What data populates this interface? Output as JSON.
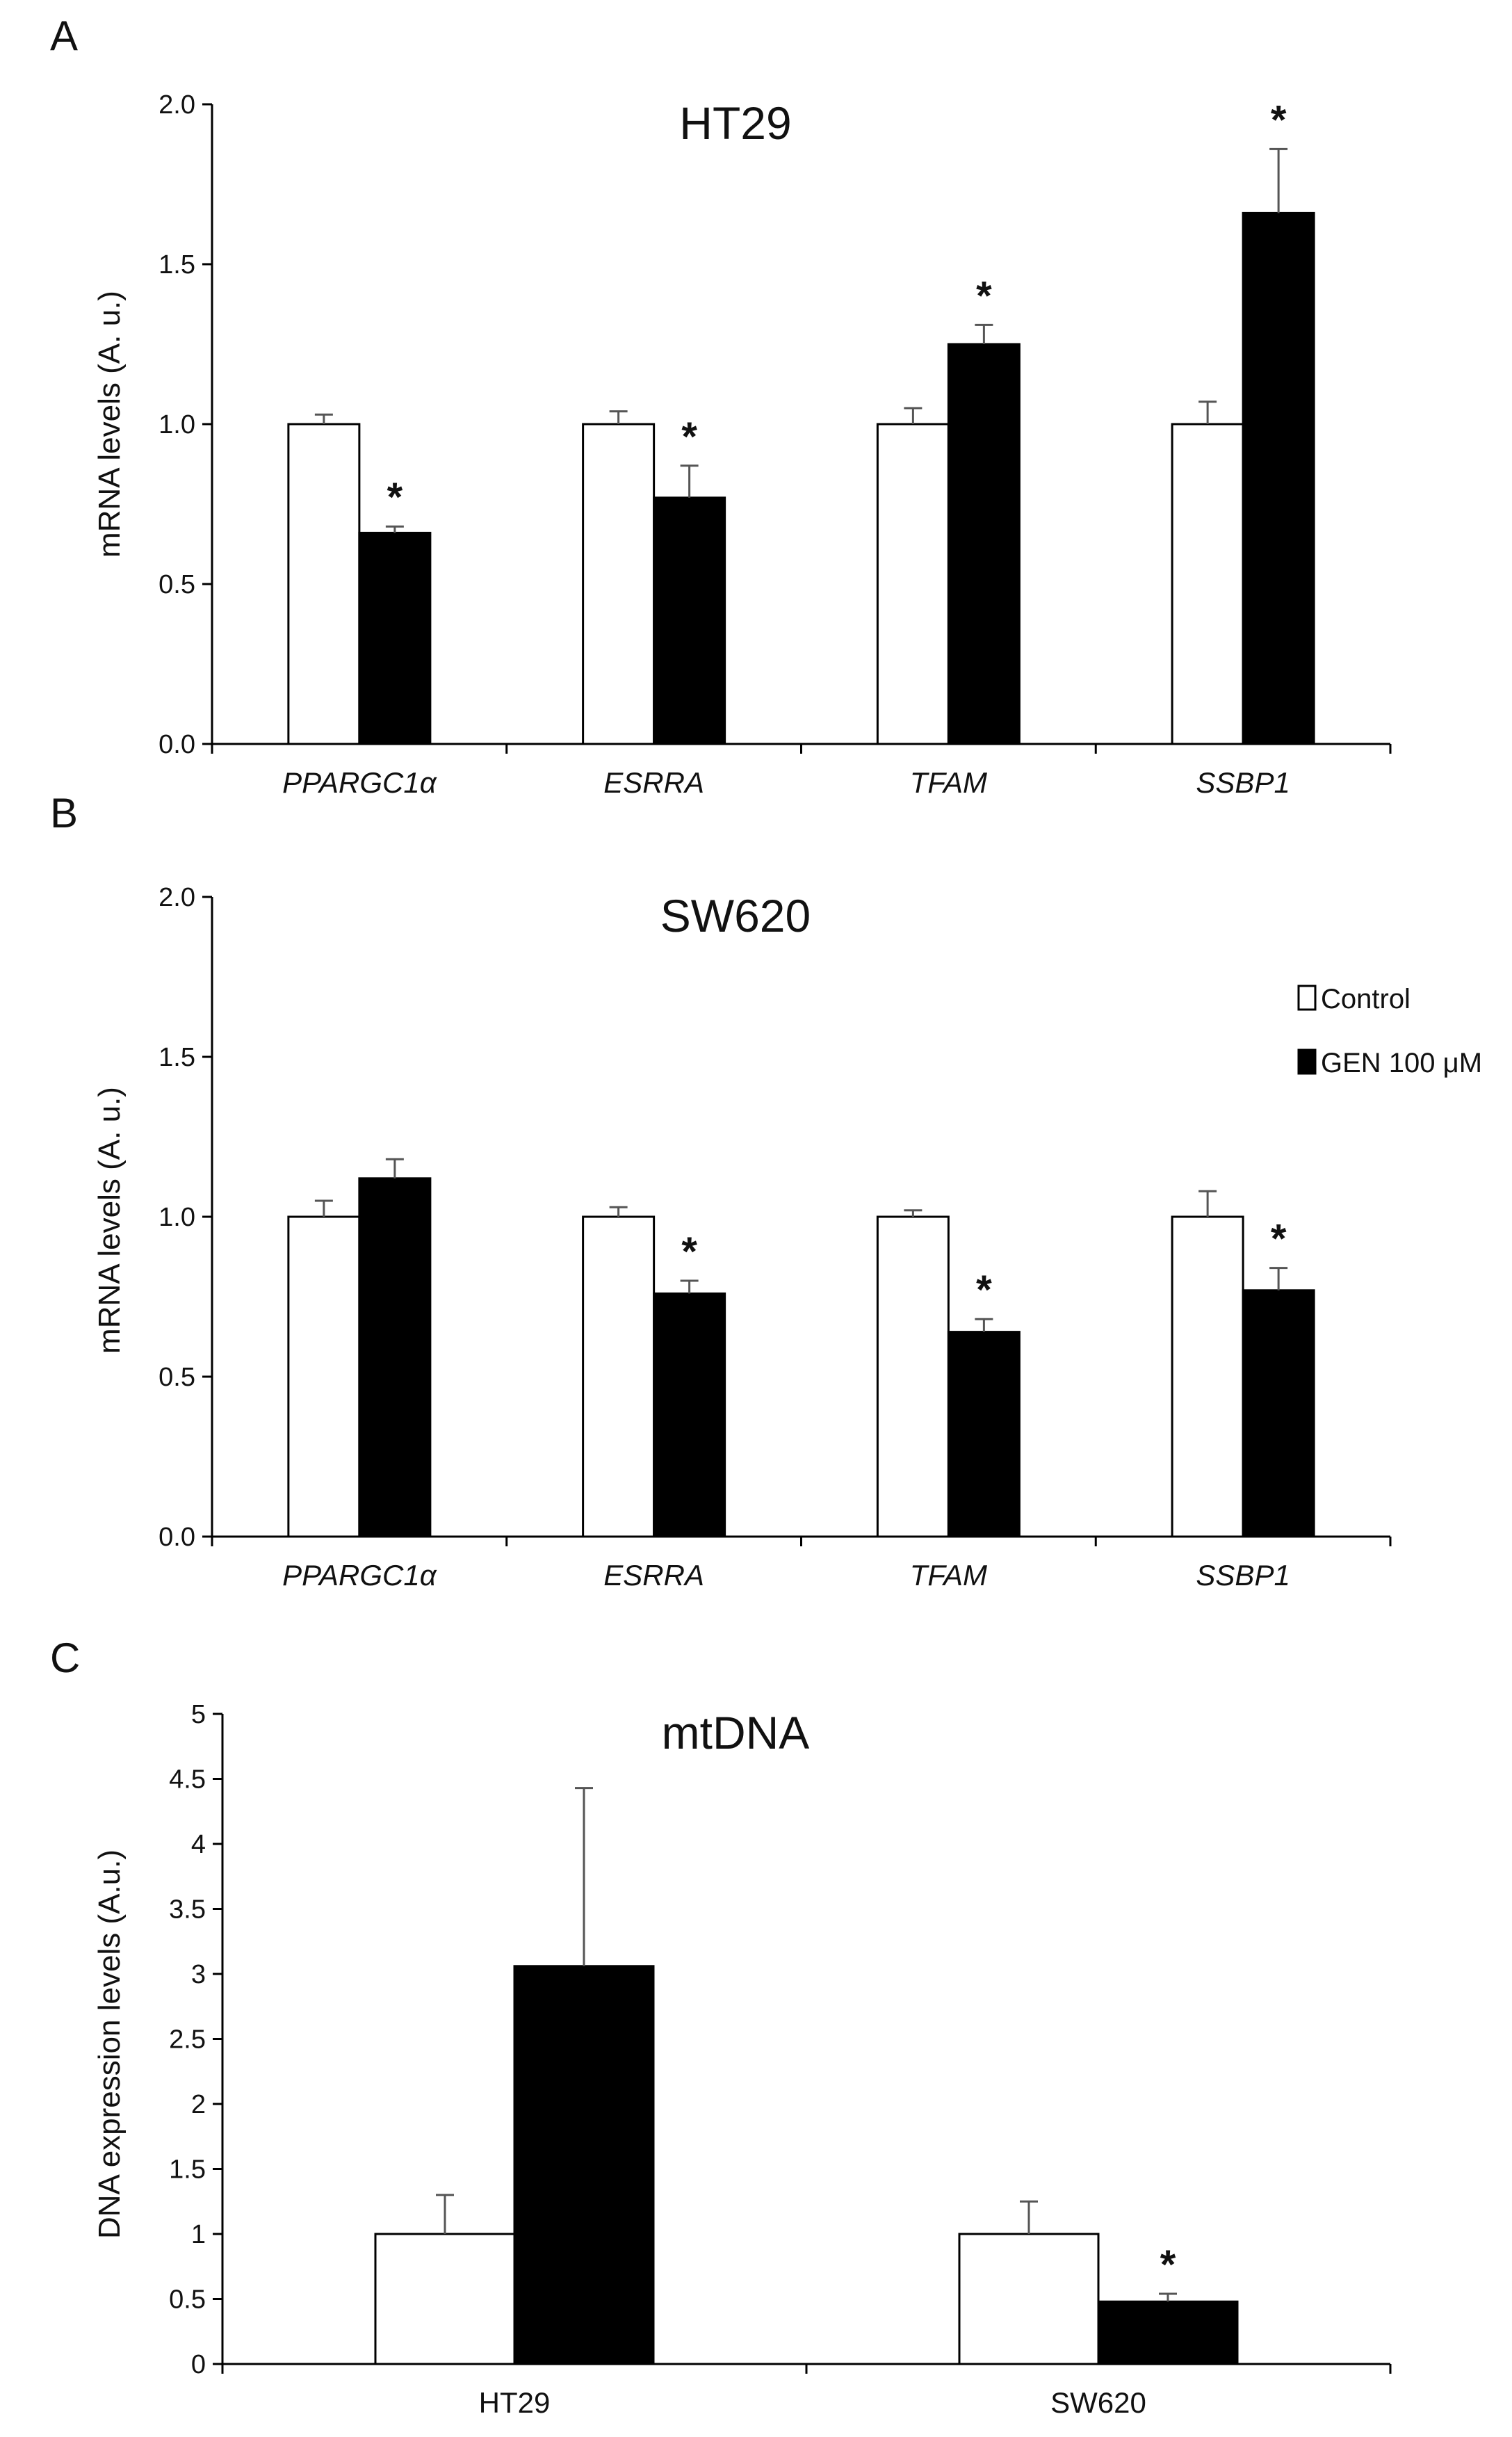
{
  "legend": {
    "control_label": "Control",
    "gen_label": "GEN 100 μM",
    "control_color": "#ffffff",
    "gen_color": "#000000"
  },
  "chart_data": [
    {
      "panel": "A",
      "type": "bar",
      "title": "HT29",
      "xlabel": "",
      "ylabel": "mRNA levels (A. u.)",
      "ylim": [
        0,
        2.0
      ],
      "yticks": [
        "0.0",
        "0.5",
        "1.0",
        "1.5",
        "2.0"
      ],
      "categories": [
        "PPARGC1α",
        "ESRRA",
        "TFAM",
        "SSBP1"
      ],
      "italic_categories": true,
      "series": [
        {
          "name": "Control",
          "values": [
            1.0,
            1.0,
            1.0,
            1.0
          ],
          "errors": [
            0.03,
            0.04,
            0.05,
            0.07
          ]
        },
        {
          "name": "GEN 100 μM",
          "values": [
            0.66,
            0.77,
            1.25,
            1.66
          ],
          "errors": [
            0.02,
            0.1,
            0.06,
            0.2
          ]
        }
      ],
      "significance": [
        {
          "series": 1,
          "category": 0,
          "label": "*"
        },
        {
          "series": 1,
          "category": 1,
          "label": "*"
        },
        {
          "series": 1,
          "category": 2,
          "label": "*"
        },
        {
          "series": 1,
          "category": 3,
          "label": "*"
        }
      ]
    },
    {
      "panel": "B",
      "type": "bar",
      "title": "SW620",
      "xlabel": "",
      "ylabel": "mRNA levels (A. u.)",
      "ylim": [
        0,
        2.0
      ],
      "yticks": [
        "0.0",
        "0.5",
        "1.0",
        "1.5",
        "2.0"
      ],
      "categories": [
        "PPARGC1α",
        "ESRRA",
        "TFAM",
        "SSBP1"
      ],
      "italic_categories": true,
      "series": [
        {
          "name": "Control",
          "values": [
            1.0,
            1.0,
            1.0,
            1.0
          ],
          "errors": [
            0.05,
            0.03,
            0.02,
            0.08
          ]
        },
        {
          "name": "GEN 100 μM",
          "values": [
            1.12,
            0.76,
            0.64,
            0.77
          ],
          "errors": [
            0.06,
            0.04,
            0.04,
            0.07
          ]
        }
      ],
      "significance": [
        {
          "series": 1,
          "category": 1,
          "label": "*"
        },
        {
          "series": 1,
          "category": 2,
          "label": "*"
        },
        {
          "series": 1,
          "category": 3,
          "label": "*"
        }
      ],
      "legend_position": "top-right"
    },
    {
      "panel": "C",
      "type": "bar",
      "title": "mtDNA",
      "xlabel": "",
      "ylabel": "DNA expression levels (A.u.)",
      "ylim": [
        0,
        5
      ],
      "yticks": [
        "0",
        "0.5",
        "1",
        "1.5",
        "2",
        "2.5",
        "3",
        "3.5",
        "4",
        "4.5",
        "5"
      ],
      "categories": [
        "HT29",
        "SW620"
      ],
      "italic_categories": false,
      "series": [
        {
          "name": "Control",
          "values": [
            1.0,
            1.0
          ],
          "errors": [
            0.3,
            0.25
          ]
        },
        {
          "name": "GEN 100 μM",
          "values": [
            3.06,
            0.48
          ],
          "errors": [
            1.37,
            0.06
          ]
        }
      ],
      "significance": [
        {
          "series": 1,
          "category": 1,
          "label": "*"
        }
      ]
    }
  ]
}
